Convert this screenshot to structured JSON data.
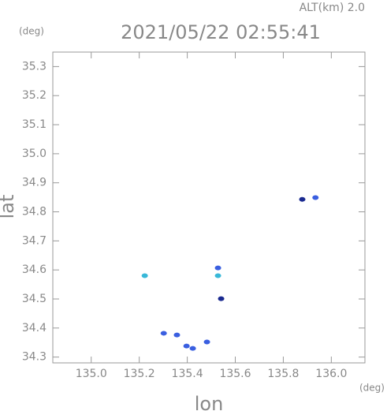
{
  "chart_data": {
    "type": "scatter",
    "subtitle": "ALT(km) 2.0",
    "title": "2021/05/22 02:55:41",
    "y_unit": "(deg)",
    "x_unit": "(deg)",
    "ylabel": "lat",
    "xlabel": "lon",
    "x": [
      135.934,
      135.879,
      135.223,
      135.528,
      135.528,
      135.541,
      135.302,
      135.357,
      135.397,
      135.423,
      135.482
    ],
    "values": [
      34.849,
      34.843,
      34.58,
      34.607,
      34.58,
      34.501,
      34.382,
      34.376,
      34.338,
      34.33,
      34.352
    ],
    "colors": [
      "#3a5fe0",
      "#1a2a90",
      "#38b8d8",
      "#3a5fe0",
      "#38b8d8",
      "#1a2a90",
      "#3a5fe0",
      "#3a5fe0",
      "#3a5fe0",
      "#3a5fe0",
      "#3a5fe0"
    ],
    "xlim": [
      134.84,
      136.14
    ],
    "ylim": [
      34.28,
      35.35
    ],
    "xticks": [
      {
        "value": 135,
        "label": "135.0"
      },
      135.2,
      135.4,
      135.6,
      135.8,
      {
        "value": 136,
        "label": "136.0"
      }
    ],
    "yticks": [
      34.3,
      34.4,
      34.5,
      34.6,
      34.7,
      34.8,
      34.9,
      {
        "value": 35,
        "label": "35.0"
      },
      35.1,
      35.2,
      35.3
    ]
  }
}
